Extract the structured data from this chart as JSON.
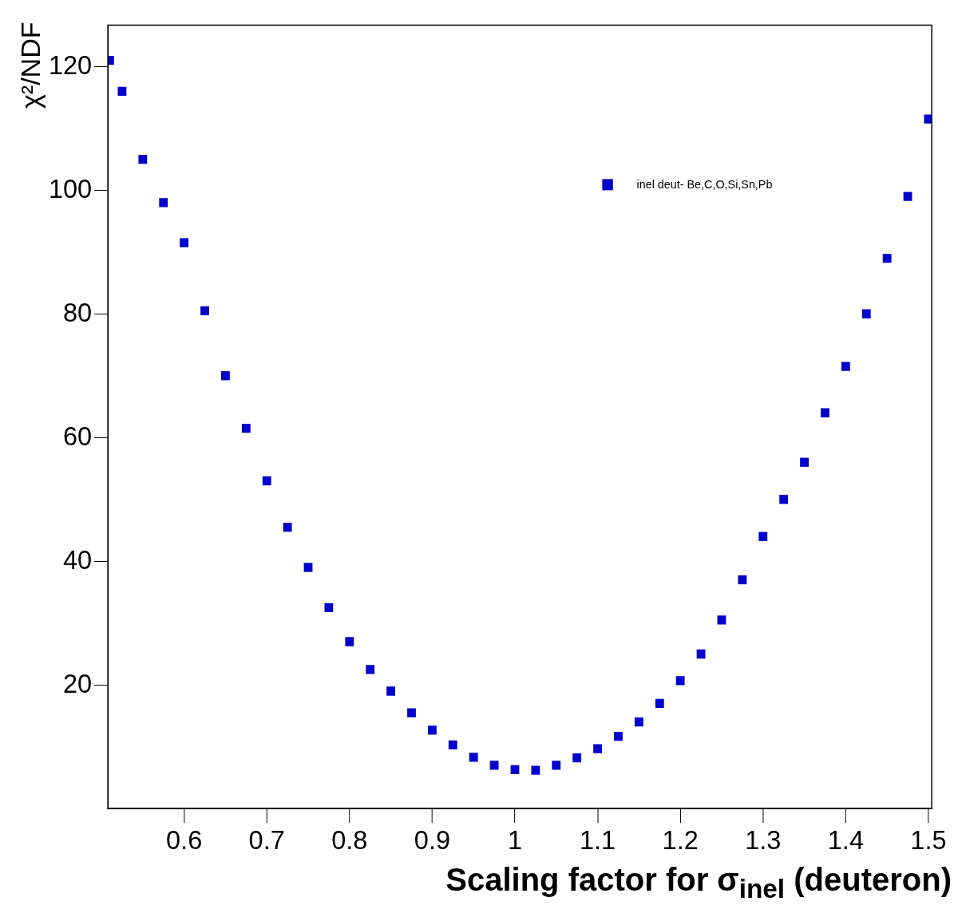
{
  "chart_data": {
    "type": "scatter",
    "xlabel": "Scaling factor for σ$_{inel}$ (deuteron)",
    "ylabel": "χ²/NDF",
    "xlim": [
      0.508,
      1.504
    ],
    "ylim": [
      0,
      126.7
    ],
    "xticks": [
      0.6,
      0.7,
      0.8,
      0.9,
      1,
      1.1,
      1.2,
      1.3,
      1.4,
      1.5
    ],
    "yticks": [
      20,
      40,
      60,
      80,
      100,
      120
    ],
    "grid": false,
    "legend": "top right",
    "marker": "square",
    "series": [
      {
        "name": "inel deut- Be,C,O,Si,Sn,Pb",
        "color": "#0000cc",
        "x": [
          0.51,
          0.525,
          0.55,
          0.575,
          0.6,
          0.625,
          0.65,
          0.675,
          0.7,
          0.725,
          0.75,
          0.775,
          0.8,
          0.825,
          0.85,
          0.875,
          0.9,
          0.925,
          0.95,
          0.975,
          1.0,
          1.025,
          1.05,
          1.075,
          1.1,
          1.125,
          1.15,
          1.175,
          1.2,
          1.225,
          1.25,
          1.275,
          1.3,
          1.325,
          1.35,
          1.375,
          1.4,
          1.425,
          1.45,
          1.475,
          1.5
        ],
        "values": [
          121,
          116,
          105,
          98,
          91.5,
          80.5,
          70,
          61.5,
          53,
          45.5,
          39,
          32.5,
          27,
          22.5,
          19,
          15.5,
          12.7,
          10.3,
          8.3,
          7,
          6.3,
          6.2,
          7,
          8.2,
          9.7,
          11.7,
          14,
          17,
          20.7,
          25,
          30.5,
          37,
          44,
          50,
          56,
          64,
          71.5,
          80,
          89,
          99,
          111.5
        ]
      }
    ]
  }
}
